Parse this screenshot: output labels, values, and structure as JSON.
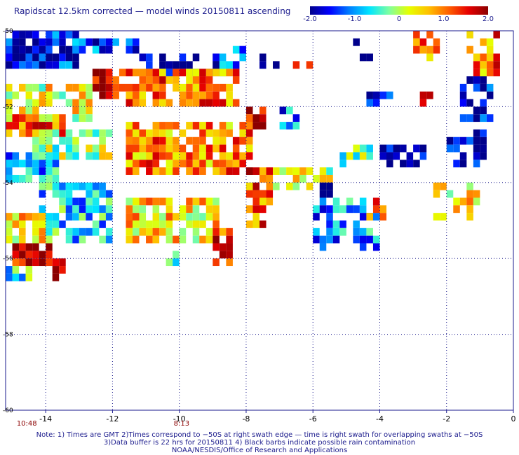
{
  "title": "Rapidscat 12.5km corrected — model winds 20150811 ascending",
  "colorbar": {
    "labels": [
      "-2.0",
      "-1.0",
      "0",
      "1.0",
      "2.0"
    ],
    "values": [
      -2,
      -1,
      0,
      1,
      2
    ],
    "range": [
      -2,
      2
    ],
    "colors": [
      "#00008b",
      "#0000ff",
      "#0080ff",
      "#00e5ff",
      "#7fffa0",
      "#e6ff00",
      "#ffc000",
      "#ff6000",
      "#e60000",
      "#8b0000"
    ]
  },
  "axes": {
    "x_ticks": [
      "-14",
      "-12",
      "-10",
      "-8",
      "-6",
      "-4",
      "-2",
      "0"
    ],
    "x_values": [
      -14,
      -12,
      -10,
      -8,
      -6,
      -4,
      -2,
      0
    ],
    "y_ticks": [
      "-50",
      "-52",
      "-54",
      "-56",
      "-58",
      "-60"
    ],
    "y_values": [
      -50,
      -52,
      -54,
      -56,
      -58,
      -60
    ],
    "lon_range": [
      -15.2,
      0
    ],
    "lat_range": [
      -60,
      -50
    ],
    "grid": true
  },
  "time_labels": [
    {
      "text": "10:48",
      "lon": -14.7
    },
    {
      "text": "8:13",
      "lon": -10
    }
  ],
  "notes": [
    "Note: 1) Times are GMT 2)Times correspond to −50S at right swath edge — time is right swath for overlapping swaths at −50S",
    "3)Data buffer is 22 hrs for 20150811 4) Black barbs indicate possible rain contamination",
    "NOAA/NESDIS/Office of Research and Applications"
  ],
  "map_data": {
    "type": "heatmap",
    "cell_deg": 0.2,
    "value_range": [
      -2,
      2
    ],
    "regions": [
      {
        "lon": [
          -15.2,
          -13.0
        ],
        "lat": [
          -51.0,
          -50.0
        ],
        "mean": -1.6,
        "fill": 0.85
      },
      {
        "lon": [
          -13.2,
          -11.2
        ],
        "lat": [
          -50.6,
          -50.2
        ],
        "mean": -1.4,
        "fill": 0.7
      },
      {
        "lon": [
          -11.2,
          -8.6
        ],
        "lat": [
          -51.2,
          -50.6
        ],
        "mean": -1.9,
        "fill": 0.6
      },
      {
        "lon": [
          -9.0,
          -8.0
        ],
        "lat": [
          -51.2,
          -50.4
        ],
        "mean": -1.3,
        "fill": 0.6
      },
      {
        "lon": [
          -7.8,
          -6.8
        ],
        "lat": [
          -51.0,
          -50.6
        ],
        "mean": -2.0,
        "fill": 0.45
      },
      {
        "lon": [
          -6.6,
          -6.0
        ],
        "lat": [
          -51.0,
          -50.6
        ],
        "mean": 0.6,
        "fill": 0.5
      },
      {
        "lon": [
          -5.0,
          -4.2
        ],
        "lat": [
          -50.8,
          -50.2
        ],
        "mean": -2.0,
        "fill": 0.45
      },
      {
        "lon": [
          -3.0,
          -2.2
        ],
        "lat": [
          -50.8,
          -50.0
        ],
        "mean": 0.8,
        "fill": 0.55
      },
      {
        "lon": [
          -1.4,
          -0.4
        ],
        "lat": [
          -51.2,
          -50.0
        ],
        "mean": 1.0,
        "fill": 0.6
      },
      {
        "lon": [
          -12.6,
          -11.6
        ],
        "lat": [
          -51.8,
          -51.0
        ],
        "mean": 1.7,
        "fill": 0.85
      },
      {
        "lon": [
          -11.6,
          -8.2
        ],
        "lat": [
          -52.0,
          -51.0
        ],
        "mean": 1.0,
        "fill": 0.85
      },
      {
        "lon": [
          -15.2,
          -12.6
        ],
        "lat": [
          -52.4,
          -51.4
        ],
        "mean": 0.3,
        "fill": 0.75
      },
      {
        "lon": [
          -15.2,
          -13.4
        ],
        "lat": [
          -52.8,
          -52.2
        ],
        "mean": 1.2,
        "fill": 0.85
      },
      {
        "lon": [
          -8.0,
          -7.4
        ],
        "lat": [
          -52.6,
          -52.0
        ],
        "mean": 1.7,
        "fill": 0.8
      },
      {
        "lon": [
          -7.0,
          -6.4
        ],
        "lat": [
          -52.6,
          -52.0
        ],
        "mean": -1.2,
        "fill": 0.55
      },
      {
        "lon": [
          -4.4,
          -3.6
        ],
        "lat": [
          -52.0,
          -51.6
        ],
        "mean": -1.4,
        "fill": 0.6
      },
      {
        "lon": [
          -2.8,
          -2.4
        ],
        "lat": [
          -52.0,
          -51.6
        ],
        "mean": 1.6,
        "fill": 0.6
      },
      {
        "lon": [
          -1.6,
          -0.6
        ],
        "lat": [
          -52.4,
          -51.2
        ],
        "mean": -1.7,
        "fill": 0.6
      },
      {
        "lon": [
          -14.4,
          -12.0
        ],
        "lat": [
          -53.4,
          -52.6
        ],
        "mean": 0.0,
        "fill": 0.75
      },
      {
        "lon": [
          -11.6,
          -7.8
        ],
        "lat": [
          -53.8,
          -52.4
        ],
        "mean": 0.9,
        "fill": 0.85
      },
      {
        "lon": [
          -15.2,
          -13.6
        ],
        "lat": [
          -54.0,
          -53.2
        ],
        "mean": -0.9,
        "fill": 0.8
      },
      {
        "lon": [
          -8.0,
          -7.2
        ],
        "lat": [
          -54.6,
          -53.6
        ],
        "mean": 1.3,
        "fill": 0.8
      },
      {
        "lon": [
          -7.2,
          -5.2
        ],
        "lat": [
          -54.2,
          -53.6
        ],
        "mean": 0.2,
        "fill": 0.55
      },
      {
        "lon": [
          -6.0,
          -5.4
        ],
        "lat": [
          -54.4,
          -54.0
        ],
        "mean": -1.8,
        "fill": 0.55
      },
      {
        "lon": [
          -5.2,
          -4.2
        ],
        "lat": [
          -53.6,
          -53.0
        ],
        "mean": -0.1,
        "fill": 0.5
      },
      {
        "lon": [
          -4.0,
          -2.6
        ],
        "lat": [
          -53.6,
          -53.0
        ],
        "mean": -2.0,
        "fill": 0.55
      },
      {
        "lon": [
          -2.0,
          -0.8
        ],
        "lat": [
          -53.6,
          -52.6
        ],
        "mean": -1.6,
        "fill": 0.6
      },
      {
        "lon": [
          -14.2,
          -12.0
        ],
        "lat": [
          -55.6,
          -54.0
        ],
        "mean": -0.7,
        "fill": 0.7
      },
      {
        "lon": [
          -11.6,
          -8.8
        ],
        "lat": [
          -55.6,
          -54.4
        ],
        "mean": 0.5,
        "fill": 0.8
      },
      {
        "lon": [
          -9.0,
          -8.4
        ],
        "lat": [
          -56.2,
          -55.2
        ],
        "mean": 1.4,
        "fill": 0.7
      },
      {
        "lon": [
          -8.0,
          -7.4
        ],
        "lat": [
          -55.2,
          -54.0
        ],
        "mean": 1.2,
        "fill": 0.7
      },
      {
        "lon": [
          -6.0,
          -4.0
        ],
        "lat": [
          -55.8,
          -54.4
        ],
        "mean": -1.0,
        "fill": 0.55
      },
      {
        "lon": [
          -4.4,
          -3.8
        ],
        "lat": [
          -55.0,
          -54.4
        ],
        "mean": 0.8,
        "fill": 0.6
      },
      {
        "lon": [
          -2.4,
          -1.0
        ],
        "lat": [
          -55.0,
          -54.0
        ],
        "mean": 0.3,
        "fill": 0.6
      },
      {
        "lon": [
          -15.2,
          -14.0
        ],
        "lat": [
          -55.6,
          -54.8
        ],
        "mean": 0.4,
        "fill": 0.8
      },
      {
        "lon": [
          -15.0,
          -13.8
        ],
        "lat": [
          -56.2,
          -55.6
        ],
        "mean": 1.8,
        "fill": 0.85
      },
      {
        "lon": [
          -13.8,
          -13.4
        ],
        "lat": [
          -56.6,
          -56.0
        ],
        "mean": 1.9,
        "fill": 0.8
      },
      {
        "lon": [
          -15.2,
          -14.4
        ],
        "lat": [
          -56.6,
          -56.2
        ],
        "mean": -0.6,
        "fill": 0.6
      },
      {
        "lon": [
          -10.4,
          -10.0
        ],
        "lat": [
          -56.2,
          -55.8
        ],
        "mean": -0.6,
        "fill": 0.6
      }
    ]
  }
}
